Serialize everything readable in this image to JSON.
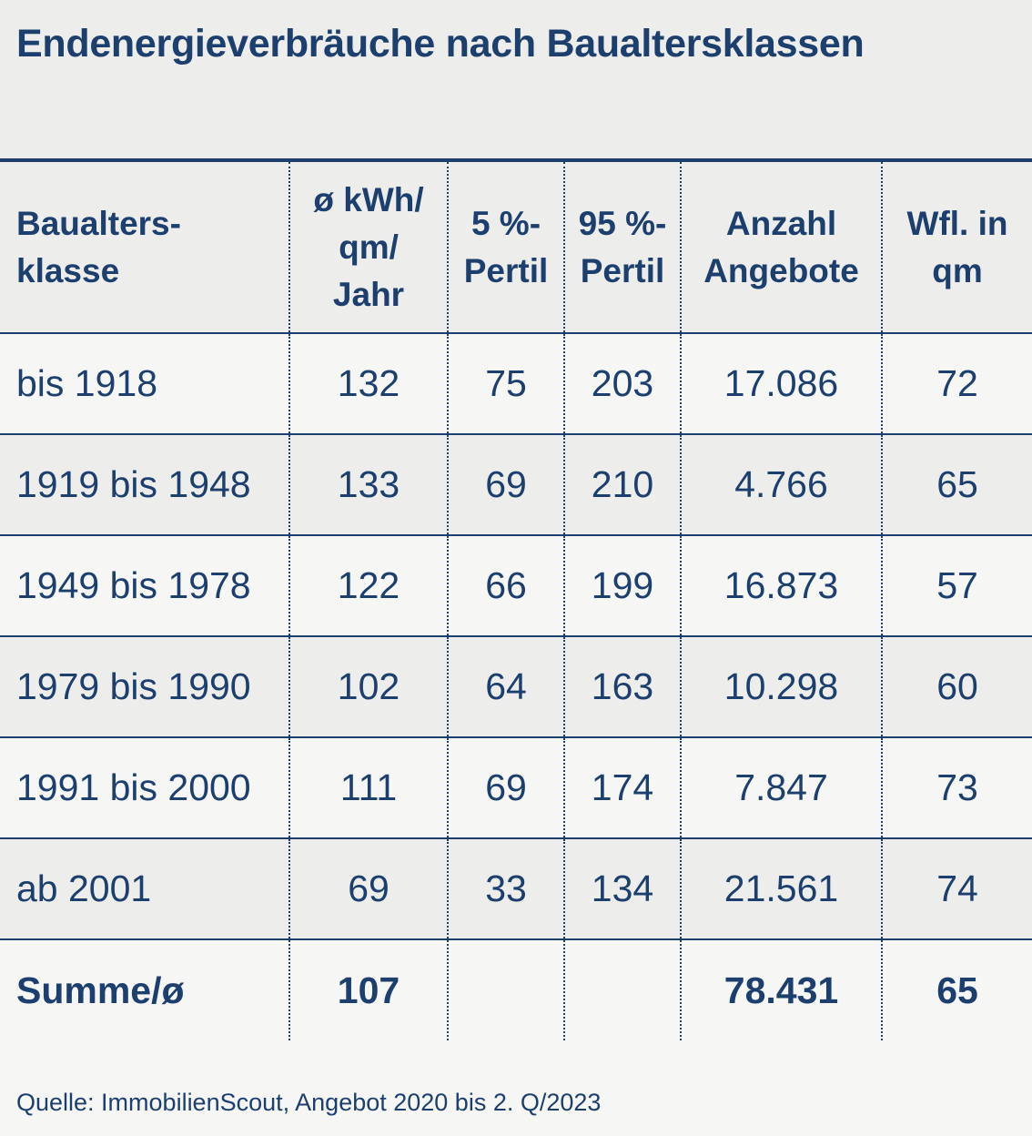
{
  "chart_data": {
    "type": "table",
    "title": "Endenergieverbräuche nach Baualtersklassen",
    "columns": [
      [
        "Baualters-",
        "klasse"
      ],
      [
        "ø kWh/",
        "qm/",
        "Jahr"
      ],
      [
        "5 %-",
        "Pertil"
      ],
      [
        "95 %-",
        "Pertil"
      ],
      [
        "Anzahl",
        "Angebote"
      ],
      [
        "Wfl. in",
        "qm"
      ]
    ],
    "rows": [
      [
        "bis 1918",
        "132",
        "75",
        "203",
        "17.086",
        "72"
      ],
      [
        "1919 bis 1948",
        "133",
        "69",
        "210",
        "4.766",
        "65"
      ],
      [
        "1949 bis 1978",
        "122",
        "66",
        "199",
        "16.873",
        "57"
      ],
      [
        "1979 bis 1990",
        "102",
        "64",
        "163",
        "10.298",
        "60"
      ],
      [
        "1991 bis 2000",
        "111",
        "69",
        "174",
        "7.847",
        "73"
      ],
      [
        "ab 2001",
        "69",
        "33",
        "134",
        "21.561",
        "74"
      ]
    ],
    "total": [
      "Summe/ø",
      "107",
      "",
      "",
      "78.431",
      "65"
    ],
    "source": "Quelle: ImmobilienScout, Angebot 2020 bis 2. Q/2023"
  },
  "colors": {
    "text": "#1d3f6e",
    "rule": "#1d3f6e",
    "band_light": "#f6f6f4",
    "band_dark": "#ededeb"
  }
}
